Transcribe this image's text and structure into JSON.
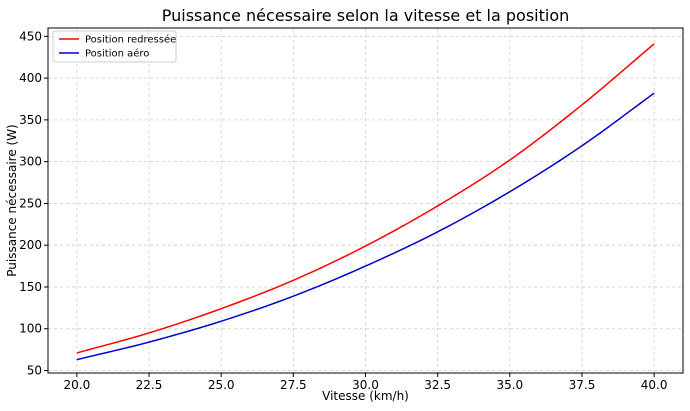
{
  "chart_data": {
    "type": "line",
    "title": "Puissance nécessaire selon la vitesse et la position",
    "xlabel": "Vitesse (km/h)",
    "ylabel": "Puissance nécessaire (W)",
    "xlim": [
      19.0,
      41.0
    ],
    "ylim": [
      47,
      460
    ],
    "xticks": [
      "20.0",
      "22.5",
      "25.0",
      "27.5",
      "30.0",
      "32.5",
      "35.0",
      "37.5",
      "40.0"
    ],
    "yticks": [
      "50",
      "100",
      "150",
      "200",
      "250",
      "300",
      "350",
      "400",
      "450"
    ],
    "grid": true,
    "legend_position": "top-left",
    "x": [
      20.0,
      22.5,
      25.0,
      27.5,
      30.0,
      32.5,
      35.0,
      37.5,
      40.0
    ],
    "series": [
      {
        "name": "Position redressée",
        "color": "#ff0000",
        "values": [
          71,
          95,
          124,
          158,
          199,
          247,
          302,
          368,
          441
        ]
      },
      {
        "name": "Position aéro",
        "color": "#0000cc",
        "values": [
          63,
          84,
          109,
          139,
          175,
          216,
          264,
          319,
          382
        ]
      }
    ]
  }
}
